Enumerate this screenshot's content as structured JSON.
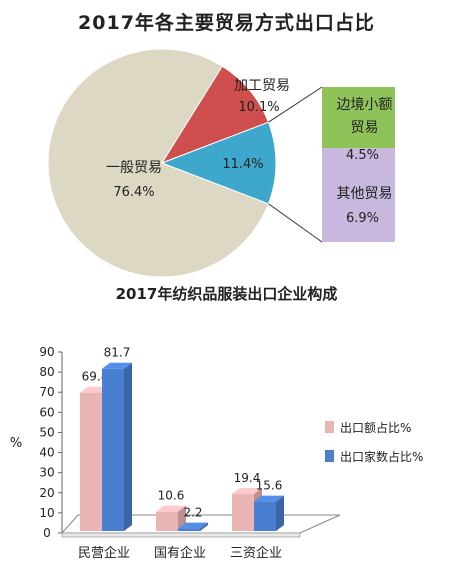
{
  "chart_data": [
    {
      "type": "pie",
      "title": "2017年各主要贸易方式出口占比",
      "slices": [
        {
          "label": "一般贸易",
          "value": 76.4,
          "value_label": "76.4%",
          "color": "#ddd8c4"
        },
        {
          "label": "加工贸易",
          "value": 10.1,
          "value_label": "10.1%",
          "color": "#cf4e4e"
        },
        {
          "label": "",
          "value": 11.4,
          "value_label": "11.4%",
          "color": "#3ea8cc"
        }
      ],
      "breakdown": {
        "of_slice_value": "11.4%",
        "slices": [
          {
            "label": "边境小额贸易",
            "label_lines": [
              "边境小额",
              "贸易"
            ],
            "value": 4.5,
            "value_label": "4.5%",
            "color": "#8fc35a"
          },
          {
            "label": "其他贸易",
            "label_lines": [
              "其他贸易"
            ],
            "value": 6.9,
            "value_label": "6.9%",
            "color": "#c9b8dd"
          }
        ]
      }
    },
    {
      "type": "bar",
      "title": "2017年纺织品服装出口企业构成",
      "categories": [
        "民营企业",
        "国有企业",
        "三资企业"
      ],
      "series": [
        {
          "name": "出口额占比%",
          "values": [
            69.8,
            10.6,
            19.4
          ],
          "color": "#e9b4b4"
        },
        {
          "name": "出口家数占比%",
          "values": [
            81.7,
            2.2,
            15.6
          ],
          "color": "#4a7fcf"
        }
      ],
      "ylabel": "%",
      "ylim": [
        0,
        90
      ],
      "yticks": [
        0,
        10,
        20,
        30,
        40,
        50,
        60,
        70,
        80,
        90
      ],
      "grid": false,
      "legend": "right"
    }
  ]
}
